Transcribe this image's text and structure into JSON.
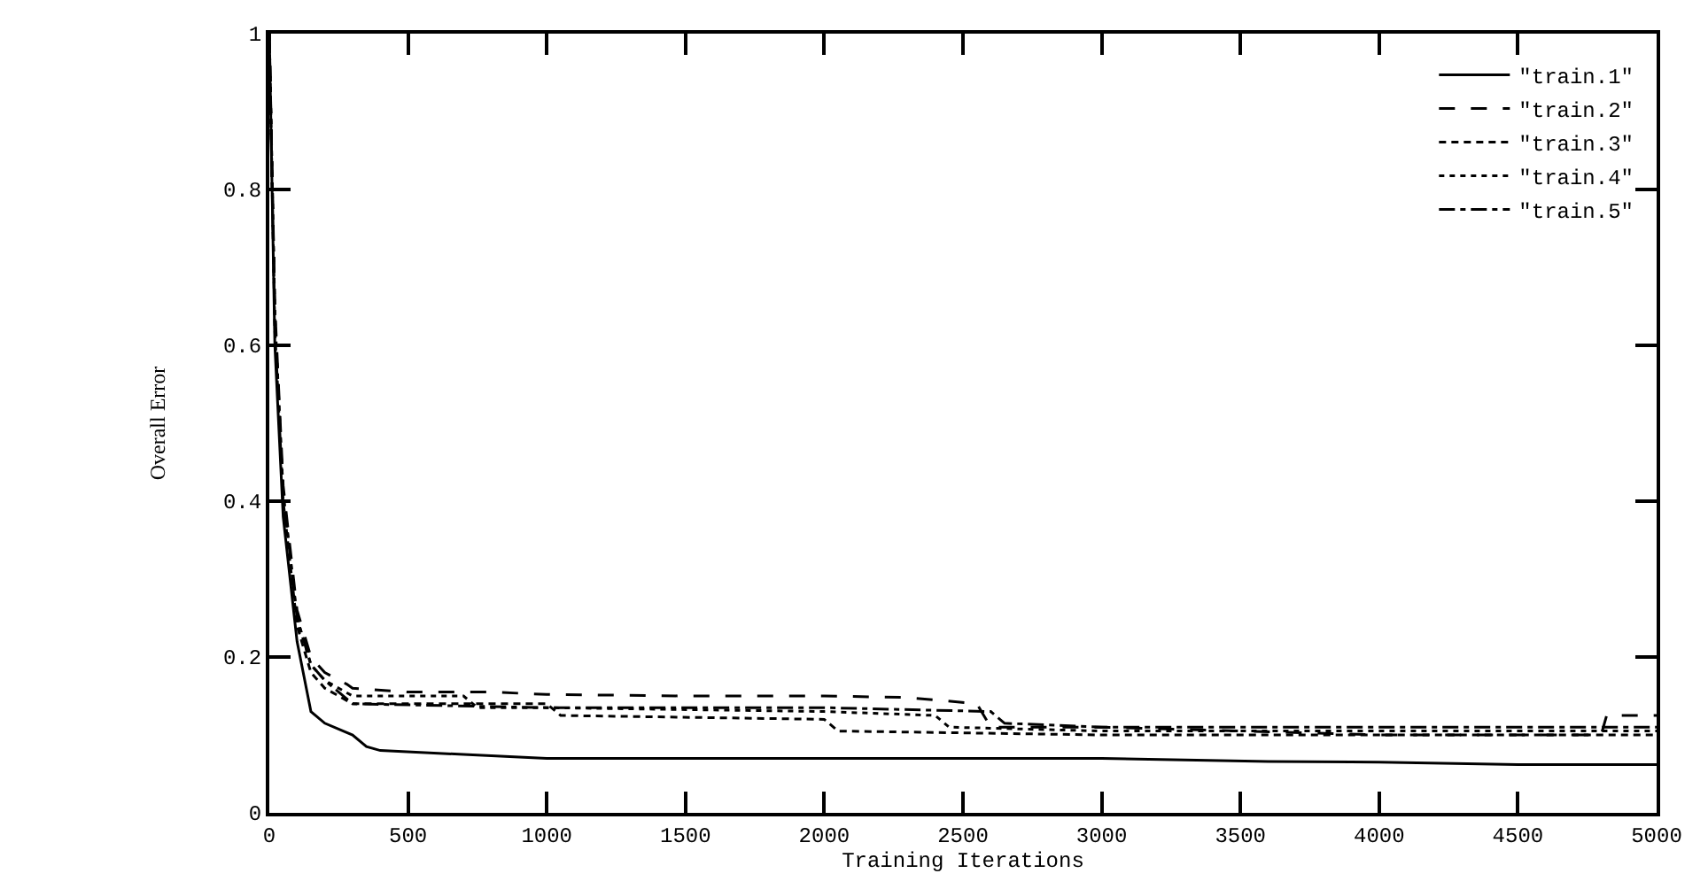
{
  "chart_data": {
    "type": "line",
    "xlabel": "Training Iterations",
    "ylabel": "Overall Error",
    "xlim": [
      0,
      5000
    ],
    "xticks": [
      0,
      500,
      1000,
      1500,
      2000,
      2500,
      3000,
      3500,
      4000,
      4500,
      5000
    ],
    "ylim": [
      0,
      1
    ],
    "yticks": [
      0,
      0.2,
      0.4,
      0.6,
      0.8,
      1
    ],
    "legend": "top right",
    "marker": "none",
    "series": [
      {
        "name": "\"train.1\"",
        "color": "#000000",
        "line_style": "solid",
        "x": [
          0,
          20,
          50,
          100,
          150,
          200,
          300,
          350,
          400,
          700,
          1000,
          2000,
          3000,
          3600,
          4000,
          4500,
          5000
        ],
        "values": [
          1,
          0.6,
          0.38,
          0.22,
          0.13,
          0.115,
          0.1,
          0.085,
          0.08,
          0.075,
          0.07,
          0.07,
          0.07,
          0.066,
          0.065,
          0.062,
          0.062
        ]
      },
      {
        "name": "\"train.2\"",
        "color": "#000000",
        "line_style": "dashed",
        "x": [
          0,
          20,
          50,
          100,
          150,
          200,
          280,
          300,
          500,
          800,
          1000,
          1500,
          2000,
          2300,
          2400,
          2550,
          2600,
          3000,
          3500,
          4000,
          4800,
          4820,
          5000
        ],
        "values": [
          1,
          0.65,
          0.42,
          0.26,
          0.2,
          0.18,
          0.165,
          0.16,
          0.155,
          0.155,
          0.152,
          0.15,
          0.15,
          0.148,
          0.145,
          0.14,
          0.11,
          0.11,
          0.105,
          0.1,
          0.1,
          0.125,
          0.125
        ]
      },
      {
        "name": "\"train.3\"",
        "color": "#000000",
        "line_style": "shortdash",
        "x": [
          0,
          20,
          50,
          100,
          150,
          200,
          300,
          1000,
          1050,
          2000,
          2050,
          3000,
          4000,
          5000
        ],
        "values": [
          1,
          0.62,
          0.4,
          0.24,
          0.18,
          0.16,
          0.14,
          0.14,
          0.125,
          0.12,
          0.105,
          0.1,
          0.1,
          0.1
        ]
      },
      {
        "name": "\"train.4\"",
        "color": "#000000",
        "line_style": "dotted",
        "x": [
          0,
          20,
          50,
          100,
          150,
          200,
          300,
          700,
          750,
          1000,
          2000,
          2400,
          2450,
          3000,
          4000,
          5000
        ],
        "values": [
          1,
          0.64,
          0.41,
          0.25,
          0.19,
          0.17,
          0.15,
          0.15,
          0.135,
          0.135,
          0.13,
          0.125,
          0.11,
          0.105,
          0.105,
          0.105
        ]
      },
      {
        "name": "\"train.5\"",
        "color": "#000000",
        "line_style": "dashdot",
        "x": [
          0,
          20,
          50,
          100,
          150,
          200,
          300,
          1000,
          2000,
          2600,
          2650,
          3000,
          4000,
          5000
        ],
        "values": [
          1,
          0.63,
          0.41,
          0.25,
          0.19,
          0.17,
          0.14,
          0.135,
          0.135,
          0.13,
          0.115,
          0.11,
          0.11,
          0.11
        ]
      }
    ]
  }
}
